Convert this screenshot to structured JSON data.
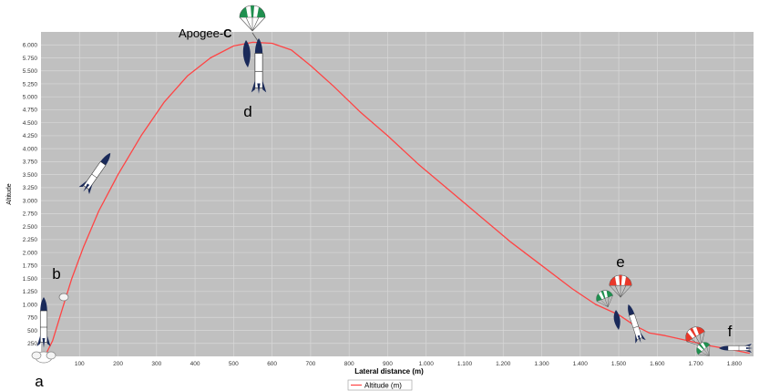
{
  "chart_data": {
    "type": "line",
    "xlabel": "Lateral distance (m)",
    "ylabel": "Altitude",
    "xlim": [
      0,
      1850
    ],
    "ylim": [
      0,
      6250
    ],
    "x_ticks": [
      100,
      200,
      300,
      400,
      500,
      600,
      700,
      800,
      900,
      1000,
      1100,
      1200,
      1300,
      1400,
      1500,
      1600,
      1700,
      1800
    ],
    "x_tick_labels": [
      "100",
      "200",
      "300",
      "400",
      "500",
      "600",
      "700",
      "800",
      "900",
      "1.000",
      "1.100",
      "1.200",
      "1.300",
      "1.400",
      "1.500",
      "1.600",
      "1.700",
      "1.800"
    ],
    "y_ticks": [
      250,
      500,
      750,
      1000,
      1250,
      1500,
      1750,
      2000,
      2250,
      2500,
      2750,
      3000,
      3250,
      3500,
      3750,
      4000,
      4250,
      4500,
      4750,
      5000,
      5250,
      5500,
      5750,
      6000
    ],
    "y_tick_labels": [
      "250",
      "500",
      "750",
      "1.000",
      "1.250",
      "1.500",
      "1.750",
      "2.000",
      "2.250",
      "2.500",
      "2.750",
      "3.000",
      "3.250",
      "3.500",
      "3.750",
      "4.000",
      "4.250",
      "4.500",
      "4.750",
      "5.000",
      "5.250",
      "5.500",
      "5.750",
      "6.000"
    ],
    "grid": true,
    "legend_position": "bottom-center",
    "series": [
      {
        "name": "Altitude (m)",
        "color": "#ff4444",
        "x": [
          10,
          30,
          55,
          80,
          110,
          150,
          200,
          260,
          320,
          380,
          440,
          500,
          550,
          600,
          650,
          700,
          760,
          830,
          900,
          980,
          1060,
          1140,
          1220,
          1300,
          1380,
          1440,
          1500,
          1540,
          1580,
          1620,
          1680,
          1740,
          1800,
          1840
        ],
        "values": [
          0,
          300,
          900,
          1500,
          2100,
          2800,
          3500,
          4250,
          4900,
          5400,
          5750,
          5980,
          6050,
          6030,
          5900,
          5600,
          5200,
          4700,
          4250,
          3700,
          3200,
          2700,
          2200,
          1750,
          1300,
          1000,
          800,
          600,
          450,
          400,
          300,
          200,
          120,
          60
        ]
      }
    ]
  },
  "annotations": {
    "a": "a",
    "b": "b",
    "apogee_prefix": "Apogee-",
    "apogee_letter": "C",
    "d": "d",
    "e": "e",
    "f": "f"
  },
  "colors": {
    "plot_background": "#c0c0c0",
    "grid": "#d8d8d8",
    "line": "#ff4444",
    "rocket_body": "#ffffff",
    "rocket_fins": "#1a2a5a",
    "chute_green": "#1f8f4f",
    "chute_red": "#e8382a"
  }
}
